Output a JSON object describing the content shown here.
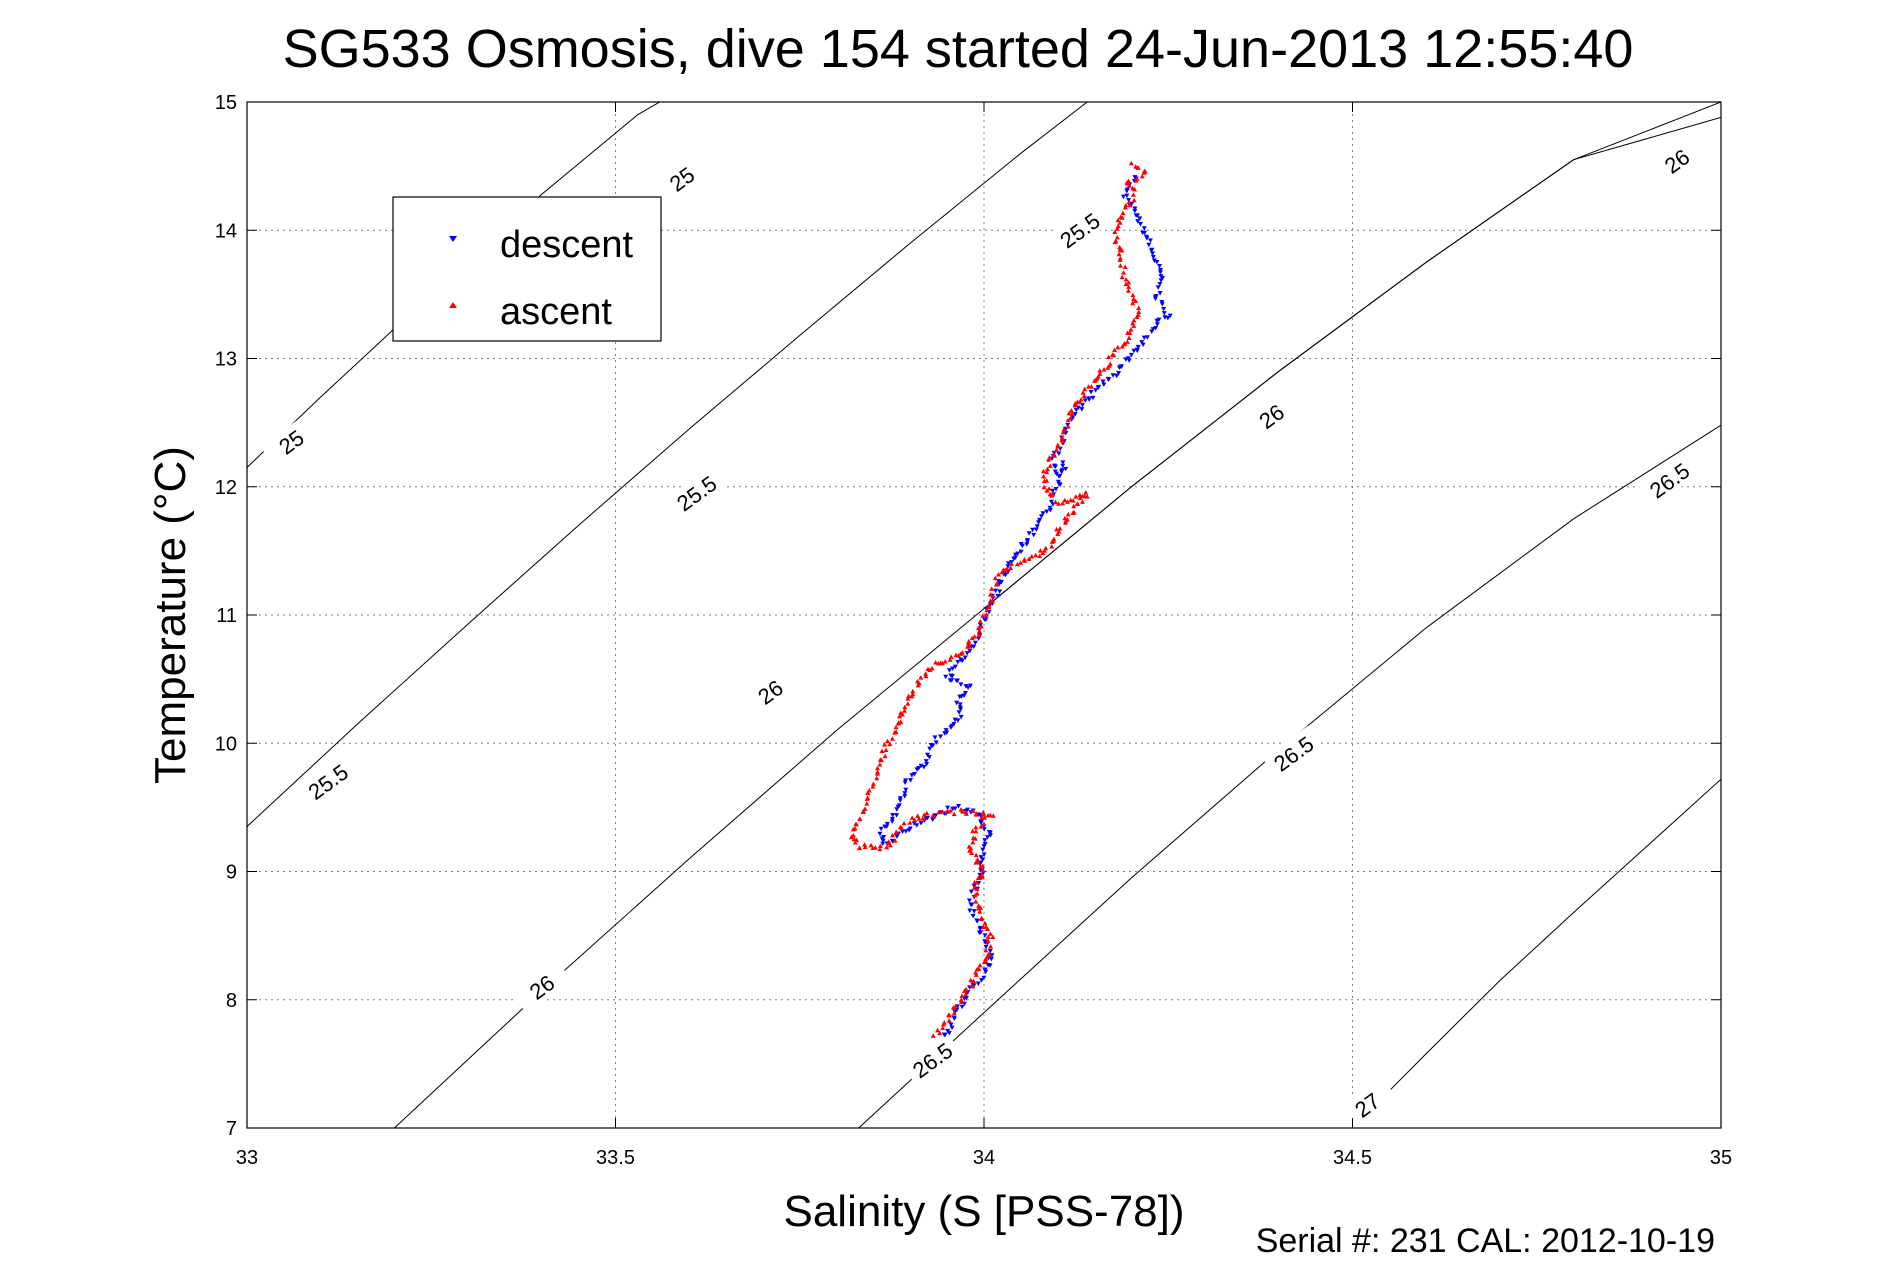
{
  "chart_data": {
    "type": "scatter",
    "title": "SG533 Osmosis, dive 154 started 24-Jun-2013 12:55:40",
    "xlabel": "Salinity (S [PSS-78])",
    "ylabel": "Temperature (°C)",
    "xlim": [
      33,
      35
    ],
    "ylim": [
      7,
      15
    ],
    "xticks": [
      "33",
      "33.5",
      "34",
      "34.5",
      "35"
    ],
    "yticks": [
      "7",
      "8",
      "9",
      "10",
      "11",
      "12",
      "13",
      "14",
      "15"
    ],
    "grid": true,
    "legend": {
      "placement": "top-left"
    },
    "footer": "Serial #: 231  CAL: 2012-10-19",
    "contours": [
      {
        "label": "25",
        "points": [
          [
            33.0,
            12.15
          ],
          [
            33.1,
            12.7
          ],
          [
            33.25,
            13.5
          ],
          [
            33.4,
            14.28
          ],
          [
            33.53,
            14.9
          ],
          [
            33.56,
            15.0
          ]
        ]
      },
      {
        "label": "25.5",
        "points": [
          [
            33.0,
            9.35
          ],
          [
            33.15,
            10.15
          ],
          [
            33.3,
            10.93
          ],
          [
            33.45,
            11.7
          ],
          [
            33.6,
            12.45
          ],
          [
            33.75,
            13.18
          ],
          [
            33.9,
            13.9
          ],
          [
            34.05,
            14.6
          ],
          [
            34.14,
            15.0
          ]
        ]
      },
      {
        "label": "26",
        "points": [
          [
            33.2,
            7.0
          ],
          [
            33.4,
            8.07
          ],
          [
            33.6,
            9.1
          ],
          [
            33.8,
            10.1
          ],
          [
            34.0,
            11.05
          ],
          [
            34.2,
            12.0
          ],
          [
            34.4,
            12.9
          ],
          [
            34.6,
            13.75
          ],
          [
            34.8,
            14.55
          ],
          [
            35.0,
            15.0
          ]
        ]
      },
      {
        "label": "26",
        "points": [
          [
            34.0,
            11.05
          ],
          [
            34.2,
            12.0
          ],
          [
            34.4,
            12.9
          ],
          [
            34.6,
            13.75
          ],
          [
            34.8,
            14.55
          ],
          [
            35.0,
            14.88
          ]
        ]
      },
      {
        "label": "26.5",
        "points": [
          [
            33.83,
            7.0
          ],
          [
            34.0,
            7.9
          ],
          [
            34.2,
            8.95
          ],
          [
            34.4,
            9.95
          ],
          [
            34.6,
            10.9
          ],
          [
            34.8,
            11.75
          ],
          [
            35.0,
            12.48
          ]
        ]
      },
      {
        "label": "27",
        "points": [
          [
            34.5,
            7.0
          ],
          [
            34.6,
            7.58
          ],
          [
            34.7,
            8.15
          ],
          [
            34.8,
            8.68
          ],
          [
            34.9,
            9.2
          ],
          [
            35.0,
            9.72
          ]
        ]
      }
    ],
    "contour_label_positions": [
      {
        "text": "25",
        "x": 33.59,
        "y": 14.4
      },
      {
        "text": "25",
        "x": 33.06,
        "y": 12.35
      },
      {
        "text": "25.5",
        "x": 34.13,
        "y": 14.0
      },
      {
        "text": "25.5",
        "x": 33.61,
        "y": 11.95
      },
      {
        "text": "25.5",
        "x": 33.11,
        "y": 9.7
      },
      {
        "text": "26",
        "x": 34.94,
        "y": 14.54
      },
      {
        "text": "26",
        "x": 34.39,
        "y": 12.55
      },
      {
        "text": "26",
        "x": 33.71,
        "y": 10.4
      },
      {
        "text": "26",
        "x": 33.4,
        "y": 8.1
      },
      {
        "text": "26.5",
        "x": 34.93,
        "y": 12.05
      },
      {
        "text": "26.5",
        "x": 34.42,
        "y": 9.92
      },
      {
        "text": "26.5",
        "x": 33.93,
        "y": 7.53
      },
      {
        "text": "27",
        "x": 34.52,
        "y": 7.18
      }
    ],
    "series": [
      {
        "name": "descent",
        "color": "#0000ff",
        "marker": "triangle-down",
        "path": [
          [
            34.21,
            14.42
          ],
          [
            34.195,
            14.35
          ],
          [
            34.19,
            14.27
          ],
          [
            34.2,
            14.2
          ],
          [
            34.22,
            13.95
          ],
          [
            34.24,
            13.65
          ],
          [
            34.235,
            13.45
          ],
          [
            34.25,
            13.35
          ],
          [
            34.225,
            13.2
          ],
          [
            34.205,
            13.05
          ],
          [
            34.18,
            12.9
          ],
          [
            34.15,
            12.75
          ],
          [
            34.12,
            12.55
          ],
          [
            34.105,
            12.35
          ],
          [
            34.095,
            12.2
          ],
          [
            34.1,
            12.1
          ],
          [
            34.11,
            12.18
          ],
          [
            34.1,
            12.0
          ],
          [
            34.09,
            11.85
          ],
          [
            34.075,
            11.75
          ],
          [
            34.06,
            11.6
          ],
          [
            34.04,
            11.45
          ],
          [
            34.03,
            11.35
          ],
          [
            34.02,
            11.2
          ],
          [
            34.005,
            11.05
          ],
          [
            34.0,
            10.95
          ],
          [
            33.99,
            10.8
          ],
          [
            33.975,
            10.7
          ],
          [
            33.96,
            10.6
          ],
          [
            33.95,
            10.5
          ],
          [
            33.98,
            10.45
          ],
          [
            33.965,
            10.35
          ],
          [
            33.97,
            10.2
          ],
          [
            33.95,
            10.1
          ],
          [
            33.93,
            10.0
          ],
          [
            33.92,
            9.85
          ],
          [
            33.9,
            9.75
          ],
          [
            33.89,
            9.6
          ],
          [
            33.88,
            9.45
          ],
          [
            33.86,
            9.3
          ],
          [
            33.865,
            9.2
          ],
          [
            33.88,
            9.25
          ],
          [
            33.9,
            9.35
          ],
          [
            33.92,
            9.4
          ],
          [
            33.94,
            9.45
          ],
          [
            33.96,
            9.5
          ],
          [
            33.99,
            9.45
          ],
          [
            34.0,
            9.35
          ],
          [
            34.01,
            9.3
          ],
          [
            34.0,
            9.2
          ],
          [
            33.995,
            9.1
          ],
          [
            34.0,
            9.0
          ],
          [
            33.99,
            8.9
          ],
          [
            33.98,
            8.75
          ],
          [
            33.99,
            8.6
          ],
          [
            34.0,
            8.5
          ],
          [
            34.005,
            8.4
          ],
          [
            34.01,
            8.3
          ],
          [
            34.0,
            8.2
          ],
          [
            33.985,
            8.1
          ],
          [
            33.975,
            8.0
          ],
          [
            33.96,
            7.9
          ],
          [
            33.955,
            7.8
          ],
          [
            33.95,
            7.75
          ],
          [
            33.94,
            7.7
          ]
        ]
      },
      {
        "name": "ascent",
        "color": "#ff0000",
        "marker": "triangle-up",
        "path": [
          [
            34.2,
            14.52
          ],
          [
            34.22,
            14.45
          ],
          [
            34.195,
            14.38
          ],
          [
            34.205,
            14.3
          ],
          [
            34.2,
            14.22
          ],
          [
            34.185,
            14.1
          ],
          [
            34.18,
            13.95
          ],
          [
            34.185,
            13.8
          ],
          [
            34.19,
            13.65
          ],
          [
            34.2,
            13.5
          ],
          [
            34.21,
            13.35
          ],
          [
            34.2,
            13.2
          ],
          [
            34.18,
            13.05
          ],
          [
            34.16,
            12.9
          ],
          [
            34.14,
            12.75
          ],
          [
            34.12,
            12.6
          ],
          [
            34.11,
            12.45
          ],
          [
            34.1,
            12.3
          ],
          [
            34.085,
            12.15
          ],
          [
            34.08,
            12.05
          ],
          [
            34.09,
            11.95
          ],
          [
            34.1,
            11.88
          ],
          [
            34.12,
            11.9
          ],
          [
            34.14,
            11.95
          ],
          [
            34.12,
            11.8
          ],
          [
            34.1,
            11.65
          ],
          [
            34.085,
            11.5
          ],
          [
            34.06,
            11.45
          ],
          [
            34.04,
            11.4
          ],
          [
            34.02,
            11.3
          ],
          [
            34.01,
            11.15
          ],
          [
            34.0,
            11.0
          ],
          [
            33.99,
            10.85
          ],
          [
            33.97,
            10.7
          ],
          [
            33.95,
            10.65
          ],
          [
            33.93,
            10.6
          ],
          [
            33.915,
            10.5
          ],
          [
            33.9,
            10.38
          ],
          [
            33.89,
            10.25
          ],
          [
            33.88,
            10.12
          ],
          [
            33.87,
            10.0
          ],
          [
            33.86,
            9.85
          ],
          [
            33.85,
            9.7
          ],
          [
            33.84,
            9.55
          ],
          [
            33.83,
            9.4
          ],
          [
            33.82,
            9.3
          ],
          [
            33.83,
            9.2
          ],
          [
            33.85,
            9.18
          ],
          [
            33.87,
            9.2
          ],
          [
            33.88,
            9.3
          ],
          [
            33.9,
            9.4
          ],
          [
            33.93,
            9.45
          ],
          [
            33.97,
            9.47
          ],
          [
            34.01,
            9.45
          ],
          [
            33.99,
            9.35
          ],
          [
            33.98,
            9.2
          ],
          [
            33.99,
            9.1
          ],
          [
            34.0,
            9.0
          ],
          [
            33.99,
            8.9
          ],
          [
            33.99,
            8.8
          ],
          [
            33.995,
            8.7
          ],
          [
            34.0,
            8.6
          ],
          [
            34.01,
            8.5
          ],
          [
            34.005,
            8.4
          ],
          [
            34.0,
            8.3
          ],
          [
            33.99,
            8.2
          ],
          [
            33.98,
            8.1
          ],
          [
            33.97,
            8.0
          ],
          [
            33.96,
            7.92
          ],
          [
            33.95,
            7.85
          ],
          [
            33.94,
            7.77
          ],
          [
            33.93,
            7.72
          ]
        ]
      }
    ]
  }
}
